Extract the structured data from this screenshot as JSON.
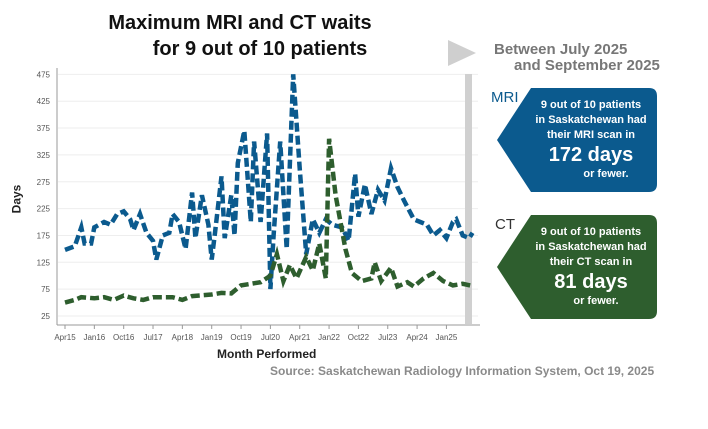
{
  "title": {
    "line1": "Maximum MRI and CT waits",
    "line2": "for 9 out of 10 patients"
  },
  "period": {
    "line1": "Between July 2025",
    "line2": "and September 2025"
  },
  "mri": {
    "label": "MRI",
    "text1": "9 out of 10 patients",
    "text2": "in Saskatchewan had",
    "text3": "their MRI scan in",
    "value": "172 days",
    "text4": "or fewer.",
    "color": "#0b5a8e"
  },
  "ct": {
    "label": "CT",
    "text1": "9 out of 10 patients",
    "text2": "in Saskatchewan had",
    "text3": "their CT scan in",
    "value": "81 days",
    "text4": "or fewer.",
    "color": "#2e5e2e"
  },
  "source": "Source: Saskatchewan Radiology Information System, Oct 19, 2025",
  "chart_data": {
    "type": "line",
    "xlabel": "Month Performed",
    "ylabel": "Days",
    "ylim": [
      25,
      475
    ],
    "yticks": [
      25,
      75,
      125,
      175,
      225,
      275,
      325,
      375,
      425,
      475
    ],
    "xticks": [
      "Apr15",
      "Jan16",
      "Oct16",
      "Jul17",
      "Apr18",
      "Jan19",
      "Oct19",
      "Jul20",
      "Apr21",
      "Jan22",
      "Oct22",
      "Jul23",
      "Apr24",
      "Jan25"
    ],
    "x_range": [
      "2015-04",
      "2025-09"
    ],
    "highlight_period": [
      "2025-07",
      "2025-09"
    ],
    "grid": "horizontal",
    "series": [
      {
        "name": "MRI",
        "color": "#0b5a8e",
        "points": [
          [
            "2015-04",
            148
          ],
          [
            "2015-07",
            155
          ],
          [
            "2015-09",
            190
          ],
          [
            "2015-10",
            160
          ],
          [
            "2015-12",
            160
          ],
          [
            "2016-01",
            190
          ],
          [
            "2016-04",
            200
          ],
          [
            "2016-06",
            195
          ],
          [
            "2016-08",
            215
          ],
          [
            "2016-10",
            220
          ],
          [
            "2016-12",
            205
          ],
          [
            "2017-01",
            185
          ],
          [
            "2017-03",
            215
          ],
          [
            "2017-05",
            180
          ],
          [
            "2017-07",
            165
          ],
          [
            "2017-08",
            130
          ],
          [
            "2017-10",
            175
          ],
          [
            "2017-12",
            180
          ],
          [
            "2018-01",
            215
          ],
          [
            "2018-03",
            200
          ],
          [
            "2018-05",
            150
          ],
          [
            "2018-07",
            255
          ],
          [
            "2018-08",
            170
          ],
          [
            "2018-10",
            250
          ],
          [
            "2018-12",
            195
          ],
          [
            "2019-01",
            130
          ],
          [
            "2019-02",
            180
          ],
          [
            "2019-04",
            285
          ],
          [
            "2019-05",
            170
          ],
          [
            "2019-07",
            250
          ],
          [
            "2019-08",
            175
          ],
          [
            "2019-09",
            310
          ],
          [
            "2019-11",
            370
          ],
          [
            "2020-01",
            200
          ],
          [
            "2020-02",
            350
          ],
          [
            "2020-04",
            200
          ],
          [
            "2020-06",
            365
          ],
          [
            "2020-07",
            75
          ],
          [
            "2020-08",
            175
          ],
          [
            "2020-10",
            350
          ],
          [
            "2020-12",
            150
          ],
          [
            "2021-02",
            475
          ],
          [
            "2021-04",
            300
          ],
          [
            "2021-06",
            140
          ],
          [
            "2021-08",
            205
          ],
          [
            "2021-10",
            180
          ],
          [
            "2021-12",
            205
          ],
          [
            "2022-02",
            195
          ],
          [
            "2022-05",
            190
          ],
          [
            "2022-07",
            165
          ],
          [
            "2022-09",
            290
          ],
          [
            "2022-10",
            210
          ],
          [
            "2022-12",
            270
          ],
          [
            "2023-02",
            215
          ],
          [
            "2023-04",
            260
          ],
          [
            "2023-06",
            240
          ],
          [
            "2023-08",
            300
          ],
          [
            "2023-10",
            265
          ],
          [
            "2023-12",
            240
          ],
          [
            "2024-03",
            205
          ],
          [
            "2024-05",
            200
          ],
          [
            "2024-07",
            195
          ],
          [
            "2024-09",
            175
          ],
          [
            "2024-11",
            185
          ],
          [
            "2025-01",
            170
          ],
          [
            "2025-03",
            200
          ],
          [
            "2025-04",
            205
          ],
          [
            "2025-06",
            175
          ],
          [
            "2025-08",
            170
          ],
          [
            "2025-09",
            180
          ]
        ]
      },
      {
        "name": "CT",
        "color": "#2e5e2e",
        "points": [
          [
            "2015-04",
            50
          ],
          [
            "2015-07",
            55
          ],
          [
            "2015-09",
            60
          ],
          [
            "2016-01",
            58
          ],
          [
            "2016-04",
            60
          ],
          [
            "2016-07",
            55
          ],
          [
            "2016-10",
            63
          ],
          [
            "2017-01",
            58
          ],
          [
            "2017-04",
            55
          ],
          [
            "2017-07",
            60
          ],
          [
            "2018-01",
            60
          ],
          [
            "2018-04",
            55
          ],
          [
            "2018-07",
            62
          ],
          [
            "2019-01",
            65
          ],
          [
            "2019-04",
            68
          ],
          [
            "2019-07",
            67
          ],
          [
            "2019-10",
            82
          ],
          [
            "2020-01",
            85
          ],
          [
            "2020-04",
            88
          ],
          [
            "2020-07",
            100
          ],
          [
            "2020-09",
            140
          ],
          [
            "2020-11",
            90
          ],
          [
            "2021-01",
            120
          ],
          [
            "2021-03",
            95
          ],
          [
            "2021-06",
            135
          ],
          [
            "2021-08",
            110
          ],
          [
            "2021-10",
            160
          ],
          [
            "2021-12",
            95
          ],
          [
            "2022-01",
            355
          ],
          [
            "2022-03",
            250
          ],
          [
            "2022-06",
            150
          ],
          [
            "2022-08",
            105
          ],
          [
            "2022-11",
            90
          ],
          [
            "2023-02",
            95
          ],
          [
            "2023-03",
            125
          ],
          [
            "2023-05",
            90
          ],
          [
            "2023-08",
            115
          ],
          [
            "2023-10",
            80
          ],
          [
            "2024-01",
            88
          ],
          [
            "2024-03",
            80
          ],
          [
            "2024-06",
            95
          ],
          [
            "2024-09",
            105
          ],
          [
            "2024-12",
            90
          ],
          [
            "2025-03",
            82
          ],
          [
            "2025-06",
            85
          ],
          [
            "2025-09",
            81
          ]
        ]
      }
    ]
  }
}
